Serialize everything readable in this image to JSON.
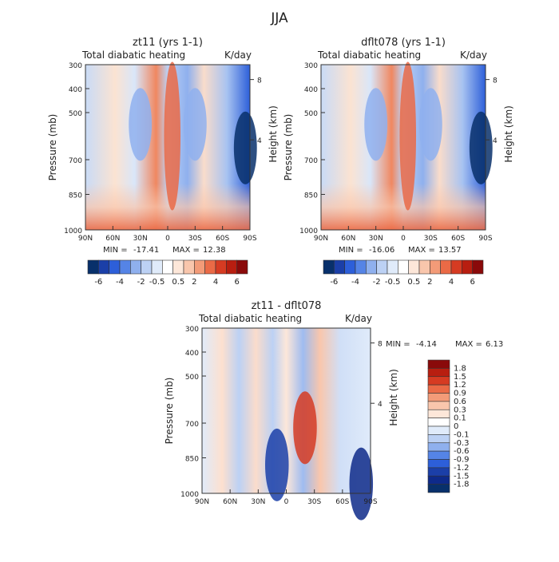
{
  "figure_title": "JJA",
  "chart_data": [
    {
      "type": "heatmap",
      "title": "zt11 (yrs 1-1)",
      "subtitle_left": "Total diabatic heating",
      "subtitle_right": "K/day",
      "xlabel": "",
      "ylabel": "Pressure (mb)",
      "y2label": "Height (km)",
      "x_ticks": [
        "90N",
        "60N",
        "30N",
        "0",
        "30S",
        "60S",
        "90S"
      ],
      "y_ticks": [
        "300",
        "400",
        "500",
        "700",
        "850",
        "1000"
      ],
      "y2_ticks": [
        "8",
        "4"
      ],
      "ylim": [
        1000,
        300
      ],
      "xlim": [
        "90N",
        "90S"
      ],
      "stats": {
        "min_label": "MIN =",
        "min": "-17.41",
        "max_label": "MAX =",
        "max": "12.38"
      },
      "colorbar": {
        "orientation": "horizontal",
        "levels": [
          "-6",
          "-4",
          "-2",
          "-0.5",
          "0.5",
          "2",
          "4",
          "6"
        ],
        "colors": [
          "#08306b",
          "#1b3fa8",
          "#2d5fd9",
          "#5584e6",
          "#8fb0ee",
          "#bcd1f4",
          "#e0ebfa",
          "#ffffff",
          "#fde7d9",
          "#f9c6ac",
          "#f39b78",
          "#ea6a46",
          "#d63b22",
          "#b81e10",
          "#8a0a0a"
        ]
      },
      "features": [
        {
          "x_lat": -5,
          "p": 600,
          "value": 2.5
        },
        {
          "x_lat": 30,
          "p": 550,
          "value": -2
        },
        {
          "x_lat": -30,
          "p": 550,
          "value": -2.5
        },
        {
          "x_lat": -85,
          "p": 650,
          "value": -6
        }
      ]
    },
    {
      "type": "heatmap",
      "title": "dflt078 (yrs 1-1)",
      "subtitle_left": "Total diabatic heating",
      "subtitle_right": "K/day",
      "xlabel": "",
      "ylabel": "Pressure (mb)",
      "y2label": "Height (km)",
      "x_ticks": [
        "90N",
        "60N",
        "30N",
        "0",
        "30S",
        "60S",
        "90S"
      ],
      "y_ticks": [
        "300",
        "400",
        "500",
        "700",
        "850",
        "1000"
      ],
      "y2_ticks": [
        "8",
        "4"
      ],
      "ylim": [
        1000,
        300
      ],
      "xlim": [
        "90N",
        "90S"
      ],
      "stats": {
        "min_label": "MIN =",
        "min": "-16.06",
        "max_label": "MAX =",
        "max": "13.57"
      },
      "colorbar": {
        "orientation": "horizontal",
        "levels": [
          "-6",
          "-4",
          "-2",
          "-0.5",
          "0.5",
          "2",
          "4",
          "6"
        ],
        "colors": [
          "#08306b",
          "#1b3fa8",
          "#2d5fd9",
          "#5584e6",
          "#8fb0ee",
          "#bcd1f4",
          "#e0ebfa",
          "#ffffff",
          "#fde7d9",
          "#f9c6ac",
          "#f39b78",
          "#ea6a46",
          "#d63b22",
          "#b81e10",
          "#8a0a0a"
        ]
      },
      "features": [
        {
          "x_lat": -5,
          "p": 600,
          "value": 3
        },
        {
          "x_lat": 30,
          "p": 550,
          "value": -2
        },
        {
          "x_lat": -30,
          "p": 550,
          "value": -2.5
        },
        {
          "x_lat": -85,
          "p": 650,
          "value": -6
        }
      ]
    },
    {
      "type": "heatmap",
      "title": "zt11 - dflt078",
      "subtitle_left": "Total diabatic heating",
      "subtitle_right": "K/day",
      "xlabel": "",
      "ylabel": "Pressure (mb)",
      "y2label": "Height (km)",
      "x_ticks": [
        "90N",
        "60N",
        "30N",
        "0",
        "30S",
        "60S",
        "90S"
      ],
      "y_ticks": [
        "300",
        "400",
        "500",
        "700",
        "850",
        "1000"
      ],
      "y2_ticks": [
        "8",
        "4"
      ],
      "ylim": [
        1000,
        300
      ],
      "xlim": [
        "90N",
        "90S"
      ],
      "stats": {
        "min_label": "MIN =",
        "min": "-4.14",
        "max_label": "MAX =",
        "max": "6.13"
      },
      "colorbar": {
        "orientation": "vertical",
        "levels": [
          "1.8",
          "1.5",
          "1.2",
          "0.9",
          "0.6",
          "0.3",
          "0.1",
          "0",
          "-0.1",
          "-0.3",
          "-0.6",
          "-0.9",
          "-1.2",
          "-1.5",
          "-1.8"
        ],
        "colors": [
          "#8a0a0a",
          "#b81e10",
          "#d63b22",
          "#ea6a46",
          "#f39b78",
          "#f9c6ac",
          "#fde7d9",
          "#ffffff",
          "#e0ebfa",
          "#bcd1f4",
          "#8fb0ee",
          "#5584e6",
          "#2d5fd9",
          "#1b3fa8",
          "#0e2a8a",
          "#08306b"
        ]
      },
      "features": [
        {
          "x_lat": -20,
          "p": 720,
          "value": 1.2
        },
        {
          "x_lat": 10,
          "p": 880,
          "value": -1.5
        },
        {
          "x_lat": -80,
          "p": 960,
          "value": -1.8
        }
      ]
    }
  ]
}
